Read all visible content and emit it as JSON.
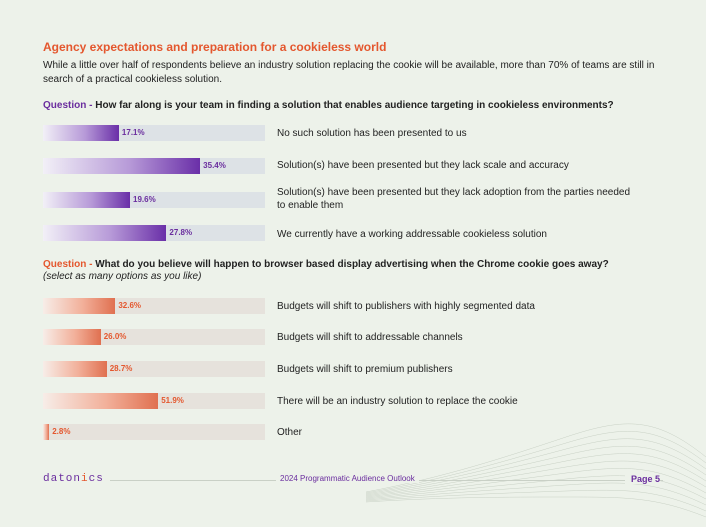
{
  "title": "Agency expectations and preparation for a cookieless world",
  "intro": "While a little over half of respondents believe an industry solution replacing the cookie will be available, more than 70% of teams are still in search of a practical cookieless solution.",
  "colors": {
    "purple": "#6a2d9e",
    "orange": "#e4572e",
    "background": "#edf2ea"
  },
  "question1": {
    "label": "Question - ",
    "text": "How far along is your team in finding a solution that enables audience targeting in cookieless environments?"
  },
  "question2": {
    "label": "Question - ",
    "text": "What do you believe will happen to browser based display advertising when the Chrome cookie goes away?",
    "subtext": "(select as many options as you like)"
  },
  "chart_data": [
    {
      "type": "bar",
      "orientation": "horizontal",
      "title": "How far along is your team in finding a solution that enables audience targeting in cookieless environments?",
      "unit": "%",
      "xlim": [
        0,
        50
      ],
      "categories": [
        "No such solution has been presented to us",
        "Solution(s) have been presented but they lack scale and accuracy",
        "Solution(s) have been presented but they lack adoption from the parties needed to enable them",
        "We currently have a working addressable cookieless solution"
      ],
      "values": [
        17.1,
        35.4,
        19.6,
        27.8
      ],
      "value_labels": [
        "17.1%",
        "35.4%",
        "19.6%",
        "27.8%"
      ]
    },
    {
      "type": "bar",
      "orientation": "horizontal",
      "title": "What do you believe will happen to browser based display advertising when the Chrome cookie goes away?",
      "unit": "%",
      "xlim": [
        0,
        100
      ],
      "categories": [
        "Budgets will shift to publishers with highly segmented data",
        "Budgets will shift to addressable channels",
        "Budgets will shift to premium publishers",
        "There will be an industry solution to replace the cookie",
        "Other"
      ],
      "values": [
        32.6,
        26.0,
        28.7,
        51.9,
        2.8
      ],
      "value_labels": [
        "32.6%",
        "26.0%",
        "28.7%",
        "51.9%",
        "2.8%"
      ]
    }
  ],
  "footer": {
    "logo_main": "daton",
    "logo_dot": "i",
    "logo_end": "cs",
    "center": "2024 Programmatic Audience Outlook",
    "page": "Page 5"
  }
}
